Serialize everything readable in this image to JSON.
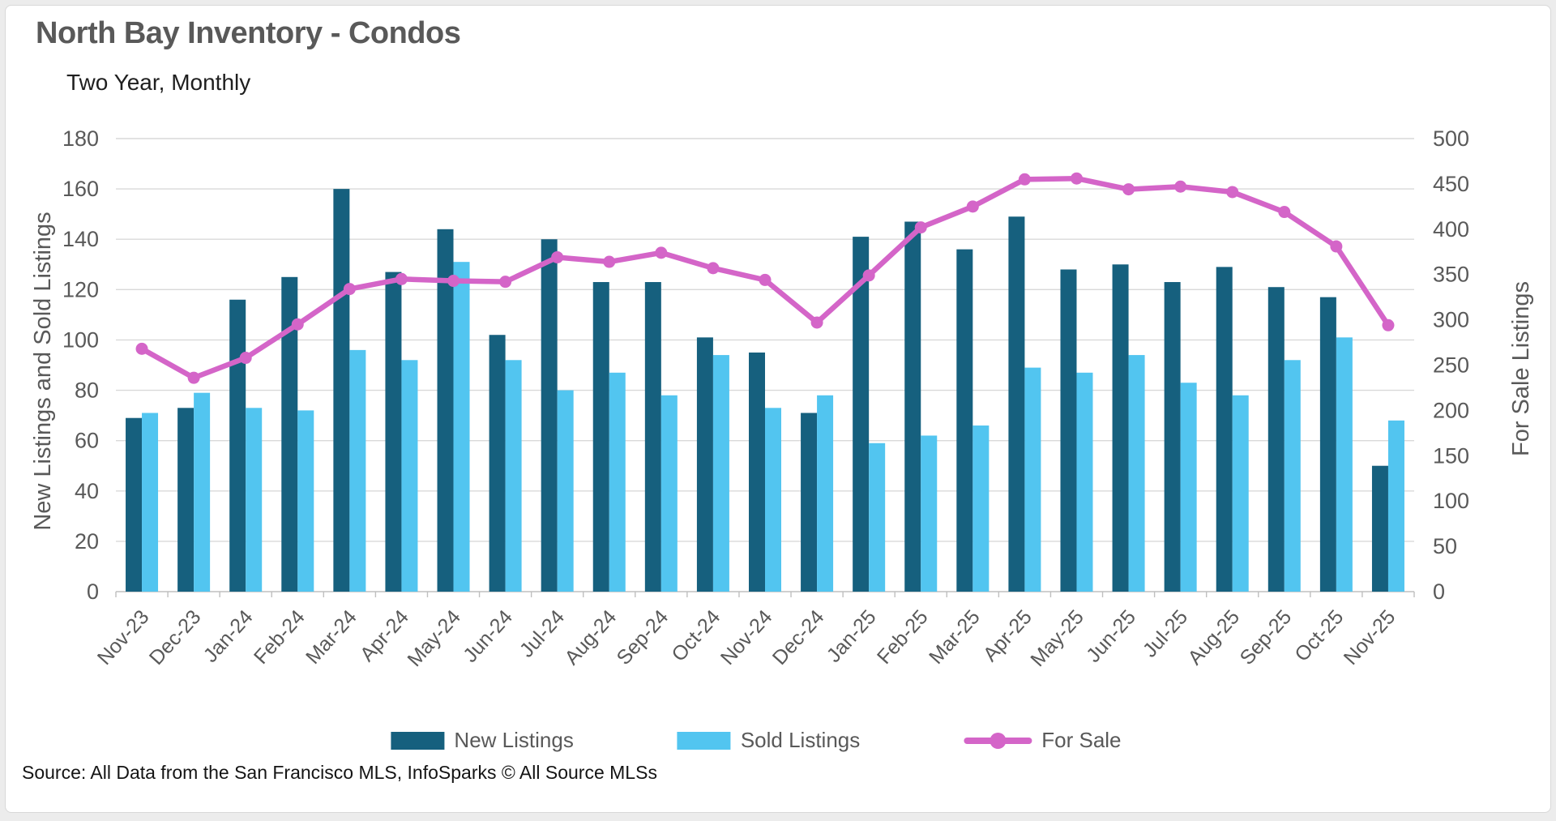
{
  "page": {
    "title": "North Bay Inventory - Condos",
    "subtitle": "Two Year, Monthly"
  },
  "source": {
    "text": "Source: All Data from the San Francisco MLS, InfoSparks © All Source MLSs"
  },
  "colors": {
    "new_listings": "#16607E",
    "sold_listings": "#52C5F0",
    "for_sale": "#D465C8",
    "grid": "#D9D9D9",
    "axis_line": "#BFBFBF",
    "axis_text": "#595959"
  },
  "chart_data": {
    "type": "bar",
    "subtype": "combo-bar-line",
    "grid": true,
    "legend_position": "bottom",
    "categories": [
      "Nov-23",
      "Dec-23",
      "Jan-24",
      "Feb-24",
      "Mar-24",
      "Apr-24",
      "May-24",
      "Jun-24",
      "Jul-24",
      "Aug-24",
      "Sep-24",
      "Oct-24",
      "Nov-24",
      "Dec-24",
      "Jan-25",
      "Feb-25",
      "Mar-25",
      "Apr-25",
      "May-25",
      "Jun-25",
      "Jul-25",
      "Aug-25",
      "Sep-25",
      "Oct-25",
      "Nov-25"
    ],
    "series": [
      {
        "name": "New Listings",
        "type": "bar",
        "axis": "left",
        "color": "#16607E",
        "values": [
          69,
          73,
          116,
          125,
          160,
          127,
          144,
          102,
          140,
          123,
          123,
          101,
          95,
          71,
          141,
          147,
          136,
          149,
          128,
          130,
          123,
          129,
          121,
          117,
          50
        ]
      },
      {
        "name": "Sold Listings",
        "type": "bar",
        "axis": "left",
        "color": "#52C5F0",
        "values": [
          71,
          79,
          73,
          72,
          96,
          92,
          131,
          92,
          80,
          87,
          78,
          94,
          73,
          78,
          59,
          62,
          66,
          89,
          87,
          94,
          83,
          78,
          92,
          101,
          68
        ]
      },
      {
        "name": "For Sale",
        "type": "line",
        "axis": "right",
        "color": "#D465C8",
        "values": [
          268,
          236,
          258,
          295,
          334,
          345,
          343,
          342,
          369,
          364,
          374,
          357,
          344,
          297,
          349,
          402,
          425,
          455,
          456,
          444,
          447,
          441,
          419,
          381,
          294
        ]
      }
    ],
    "left_axis": {
      "title": "New Listings and Sold Listings",
      "min": 0,
      "max": 180,
      "step": 20,
      "ticks": [
        0,
        20,
        40,
        60,
        80,
        100,
        120,
        140,
        160,
        180
      ]
    },
    "right_axis": {
      "title": "For Sale Listings",
      "min": 0,
      "max": 500,
      "step": 50,
      "ticks": [
        0,
        50,
        100,
        150,
        200,
        250,
        300,
        350,
        400,
        450,
        500
      ]
    }
  }
}
